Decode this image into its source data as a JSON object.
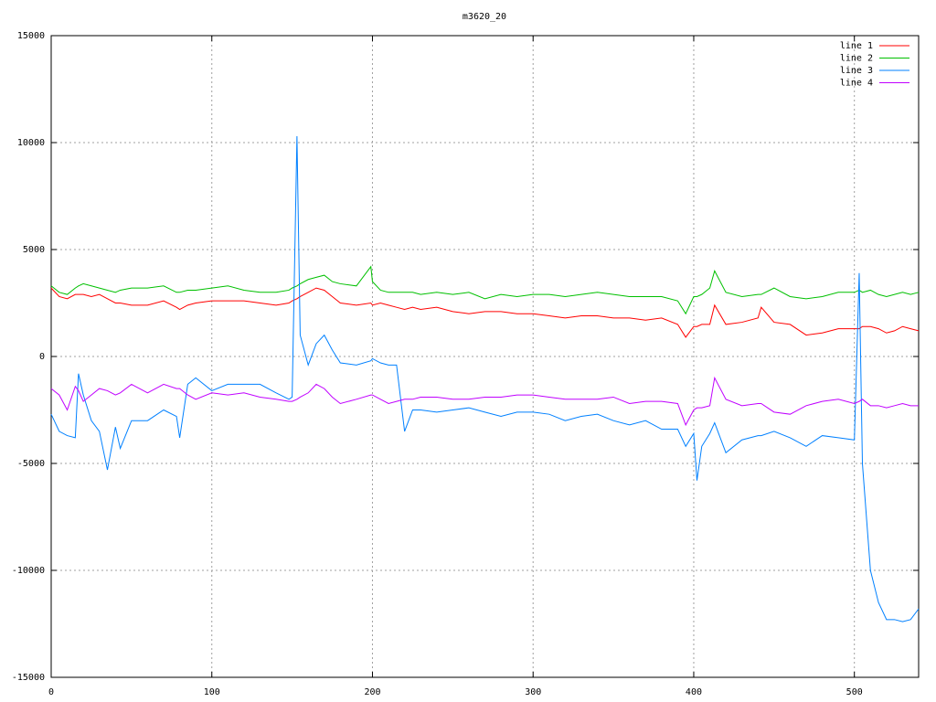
{
  "chart_data": {
    "type": "line",
    "title": "m3620_20",
    "x": [
      0,
      5,
      10,
      15,
      17,
      20,
      25,
      30,
      35,
      40,
      43,
      50,
      60,
      70,
      78,
      80,
      85,
      90,
      100,
      110,
      120,
      130,
      140,
      148,
      150,
      153,
      155,
      160,
      165,
      170,
      175,
      180,
      190,
      199,
      200,
      205,
      210,
      215,
      220,
      225,
      230,
      240,
      250,
      260,
      270,
      280,
      290,
      300,
      310,
      320,
      330,
      340,
      350,
      360,
      370,
      380,
      390,
      395,
      400,
      402,
      405,
      410,
      413,
      420,
      430,
      440,
      442,
      450,
      460,
      470,
      480,
      490,
      500,
      503,
      505,
      510,
      515,
      520,
      525,
      530,
      535,
      540
    ],
    "series": [
      {
        "name": "line 1",
        "color": "#ff0000",
        "values": [
          3200,
          2800,
          2700,
          2900,
          2900,
          2900,
          2800,
          2900,
          2700,
          2500,
          2500,
          2400,
          2400,
          2600,
          2300,
          2200,
          2400,
          2500,
          2600,
          2600,
          2600,
          2500,
          2400,
          2500,
          2600,
          2700,
          2800,
          3000,
          3200,
          3100,
          2800,
          2500,
          2400,
          2500,
          2400,
          2500,
          2400,
          2300,
          2200,
          2300,
          2200,
          2300,
          2100,
          2000,
          2100,
          2100,
          2000,
          2000,
          1900,
          1800,
          1900,
          1900,
          1800,
          1800,
          1700,
          1800,
          1500,
          900,
          1400,
          1400,
          1500,
          1500,
          2400,
          1500,
          1600,
          1800,
          2300,
          1600,
          1500,
          1000,
          1100,
          1300,
          1300,
          1300,
          1400,
          1400,
          1300,
          1100,
          1200,
          1400,
          1300,
          1200
        ]
      },
      {
        "name": "line 2",
        "color": "#00c000",
        "values": [
          3300,
          3000,
          2900,
          3200,
          3300,
          3400,
          3300,
          3200,
          3100,
          3000,
          3100,
          3200,
          3200,
          3300,
          3000,
          3000,
          3100,
          3100,
          3200,
          3300,
          3100,
          3000,
          3000,
          3100,
          3200,
          3300,
          3400,
          3600,
          3700,
          3800,
          3500,
          3400,
          3300,
          4200,
          3500,
          3100,
          3000,
          3000,
          3000,
          3000,
          2900,
          3000,
          2900,
          3000,
          2700,
          2900,
          2800,
          2900,
          2900,
          2800,
          2900,
          3000,
          2900,
          2800,
          2800,
          2800,
          2600,
          2000,
          2800,
          2800,
          2900,
          3200,
          4000,
          3000,
          2800,
          2900,
          2900,
          3200,
          2800,
          2700,
          2800,
          3000,
          3000,
          3100,
          3000,
          3100,
          2900,
          2800,
          2900,
          3000,
          2900,
          3000
        ]
      },
      {
        "name": "line 3",
        "color": "#0080ff",
        "values": [
          -2700,
          -3500,
          -3700,
          -3800,
          -800,
          -1800,
          -3000,
          -3500,
          -5300,
          -3300,
          -4300,
          -3000,
          -3000,
          -2500,
          -2800,
          -3800,
          -1300,
          -1000,
          -1600,
          -1300,
          -1300,
          -1300,
          -1700,
          -2000,
          -1900,
          10300,
          1000,
          -400,
          600,
          1000,
          300,
          -300,
          -400,
          -200,
          -100,
          -300,
          -400,
          -400,
          -3500,
          -2500,
          -2500,
          -2600,
          -2500,
          -2400,
          -2600,
          -2800,
          -2600,
          -2600,
          -2700,
          -3000,
          -2800,
          -2700,
          -3000,
          -3200,
          -3000,
          -3400,
          -3400,
          -4200,
          -3600,
          -5800,
          -4200,
          -3600,
          -3100,
          -4500,
          -3900,
          -3700,
          -3700,
          -3500,
          -3800,
          -4200,
          -3700,
          -3800,
          -3900,
          3900,
          -5000,
          -10000,
          -11500,
          -12300,
          -12300,
          -12400,
          -12300,
          -11800
        ]
      },
      {
        "name": "line 4",
        "color": "#c000ff",
        "values": [
          -1500,
          -1800,
          -2500,
          -1400,
          -1600,
          -2100,
          -1800,
          -1500,
          -1600,
          -1800,
          -1700,
          -1300,
          -1700,
          -1300,
          -1500,
          -1500,
          -1800,
          -2000,
          -1700,
          -1800,
          -1700,
          -1900,
          -2000,
          -2100,
          -2100,
          -2000,
          -1900,
          -1700,
          -1300,
          -1500,
          -1900,
          -2200,
          -2000,
          -1800,
          -1800,
          -2000,
          -2200,
          -2100,
          -2000,
          -2000,
          -1900,
          -1900,
          -2000,
          -2000,
          -1900,
          -1900,
          -1800,
          -1800,
          -1900,
          -2000,
          -2000,
          -2000,
          -1900,
          -2200,
          -2100,
          -2100,
          -2200,
          -3200,
          -2500,
          -2400,
          -2400,
          -2300,
          -1000,
          -2000,
          -2300,
          -2200,
          -2200,
          -2600,
          -2700,
          -2300,
          -2100,
          -2000,
          -2200,
          -2100,
          -2000,
          -2300,
          -2300,
          -2400,
          -2300,
          -2200,
          -2300,
          -2300
        ]
      }
    ],
    "xlim": [
      0,
      540
    ],
    "xticks": [
      0,
      100,
      200,
      300,
      400,
      500
    ],
    "ylim": [
      -15000,
      15000
    ],
    "yticks": [
      -15000,
      -10000,
      -5000,
      0,
      5000,
      10000,
      15000
    ],
    "grid": true,
    "legend": "top-right"
  }
}
